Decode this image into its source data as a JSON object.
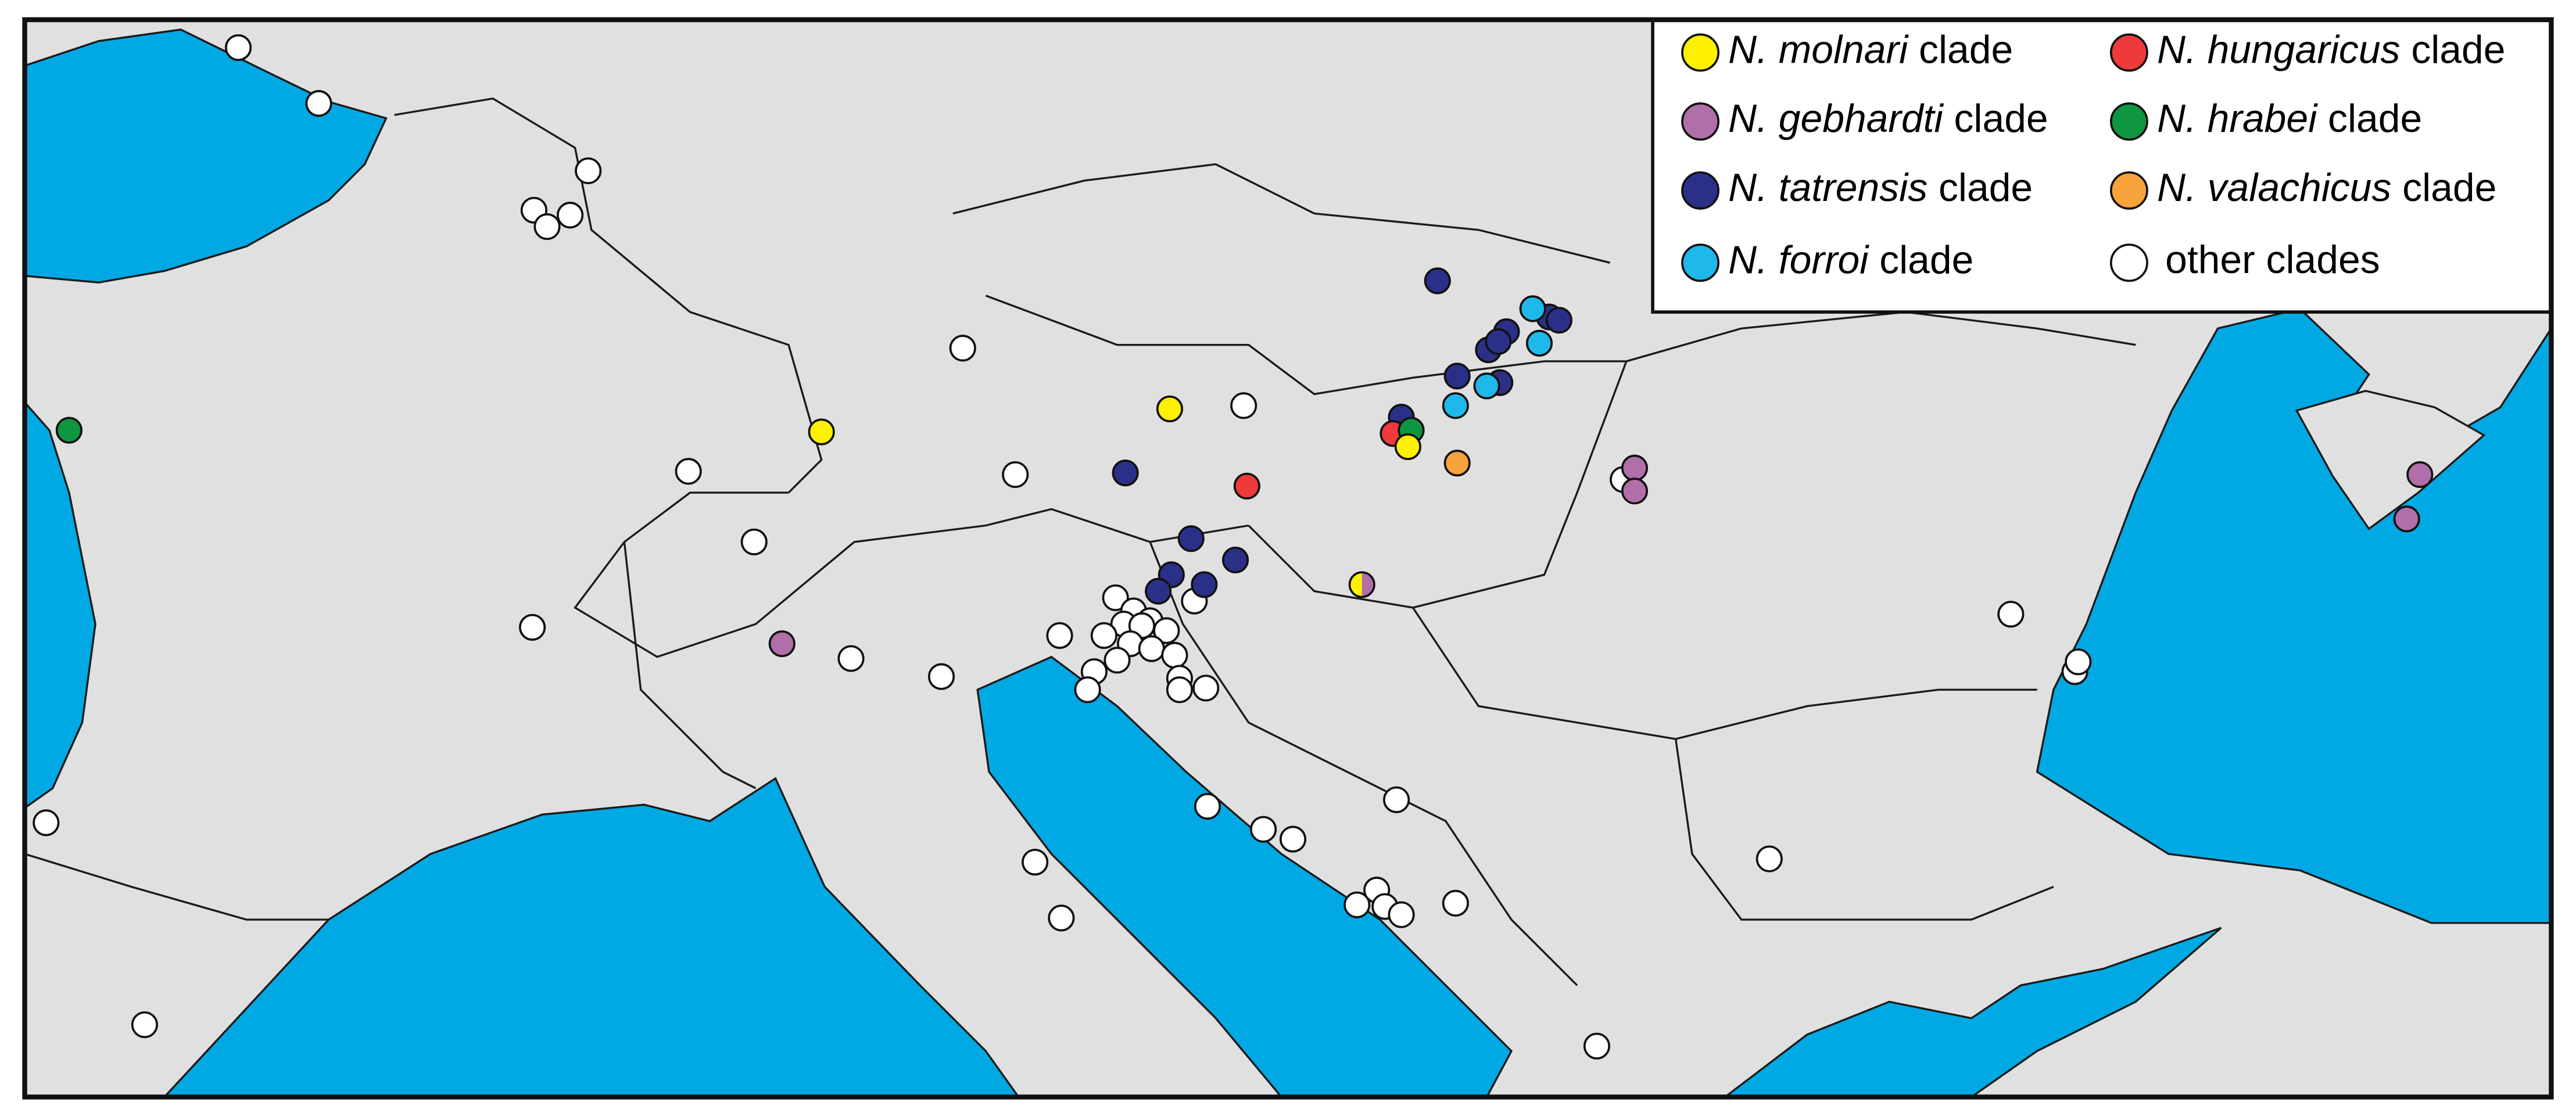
{
  "legend": {
    "items": [
      {
        "species": "N. molnari",
        "suffix": "clade",
        "color": "#ffef00"
      },
      {
        "species": "N. gebhardti",
        "suffix": "clade",
        "color": "#b06fa8"
      },
      {
        "species": "N. tatrensis",
        "suffix": "clade",
        "color": "#2a3087"
      },
      {
        "species": "N. forroi",
        "suffix": "clade",
        "color": "#1fb8ea"
      },
      {
        "species": "N. hungaricus",
        "suffix": "clade",
        "color": "#ee3a3a"
      },
      {
        "species": "N. hrabei",
        "suffix": "clade",
        "color": "#0f9640"
      },
      {
        "species": "N. valachicus",
        "suffix": "clade",
        "color": "#f7a23a"
      }
    ],
    "other": {
      "label": "other clades",
      "color": "#ffffff"
    }
  }
}
